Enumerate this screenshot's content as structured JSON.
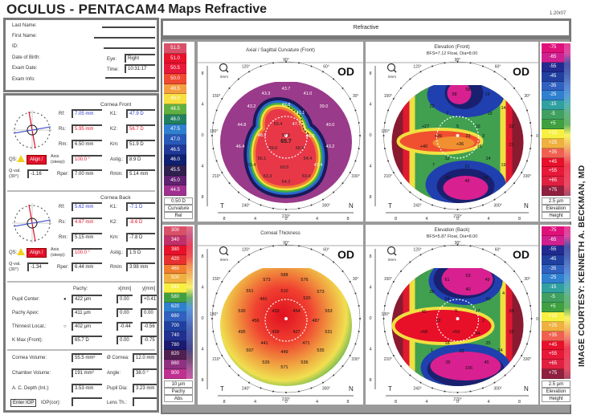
{
  "header": {
    "brand": "OCULUS - PENTACAM",
    "title": "4 Maps Refractive",
    "version": "1.20r07",
    "section": "Refractive"
  },
  "patient": {
    "fields": [
      {
        "label": "Last Name:",
        "value": ""
      },
      {
        "label": "First Name:",
        "value": ""
      },
      {
        "label": "ID:",
        "value": ""
      },
      {
        "label": "Date of Birth:",
        "value": ""
      },
      {
        "label": "Exam Date:",
        "value": ""
      },
      {
        "label": "Exam Info:",
        "value": ""
      }
    ],
    "eye_label": "Eye:",
    "eye": "Right",
    "time_label": "Time:",
    "time": "10:31:17"
  },
  "cornea_front": {
    "title": "Cornea Front",
    "rows": [
      [
        {
          "label": "Rf:",
          "value": "7.05 mm",
          "color": "#2a3ad0"
        },
        {
          "label": "K1:",
          "value": "47.9 D",
          "color": "#2a3ad0"
        }
      ],
      [
        {
          "label": "Rs:",
          "value": "5.95 mm",
          "color": "#e0102a"
        },
        {
          "label": "K2:",
          "value": "56.7 D",
          "color": "#e0102a"
        }
      ],
      [
        {
          "label": "Rm:",
          "value": "6.50 mm",
          "color": "#222"
        },
        {
          "label": "Km:",
          "value": "51.9 D",
          "color": "#222"
        }
      ],
      [
        {
          "label": "Axis (steep):",
          "value": "100.0 °",
          "color": "#e0102a"
        },
        {
          "label": "Astig.:",
          "value": "8.9 D",
          "color": "#222"
        }
      ],
      [
        {
          "label": "Rper:",
          "value": "7.00 mm",
          "color": "#222"
        },
        {
          "label": "Rmin:",
          "value": "5.14 mm",
          "color": "#222"
        }
      ]
    ],
    "qs_label": "QS:",
    "qs_badge": "Align.!",
    "qval_label": "Q-val. (30°)",
    "qval": "-1.16"
  },
  "cornea_back": {
    "title": "Cornea Back",
    "rows": [
      [
        {
          "label": "Rf:",
          "value": "5.62 mm",
          "color": "#2a3ad0"
        },
        {
          "label": "K1:",
          "value": "-7.1 D",
          "color": "#2a3ad0"
        }
      ],
      [
        {
          "label": "Rs:",
          "value": "4.67 mm",
          "color": "#e0102a"
        },
        {
          "label": "K2:",
          "value": "-8.6 D",
          "color": "#e0102a"
        }
      ],
      [
        {
          "label": "Rm:",
          "value": "5.15 mm",
          "color": "#222"
        },
        {
          "label": "Km:",
          "value": "-7.8 D",
          "color": "#222"
        }
      ],
      [
        {
          "label": "Axis (steep):",
          "value": "100.0 °",
          "color": "#e0102a"
        },
        {
          "label": "Astig.:",
          "value": "1.5 D",
          "color": "#222"
        }
      ],
      [
        {
          "label": "Rper:",
          "value": "6.44 mm",
          "color": "#222"
        },
        {
          "label": "Rmin:",
          "value": "3.98 mm",
          "color": "#222"
        }
      ]
    ],
    "qs_label": "QS:",
    "qs_badge": "Align.!",
    "qval_label": "Q-val. (30°)",
    "qval": "-1.34"
  },
  "pachy_table": {
    "headers": [
      "Pachy:",
      "x[mm]",
      "y[mm]"
    ],
    "rows": [
      {
        "label": "Pupil Center:",
        "marker": "●",
        "pachy": "422 µm",
        "x": "0.00",
        "y": "+0.41"
      },
      {
        "label": "Pachy Apex:",
        "marker": "",
        "pachy": "411 µm",
        "x": "0.00",
        "y": "0.00"
      },
      {
        "label": "Thinnest Locat.:",
        "marker": "○",
        "pachy": "402 µm",
        "x": "-0.44",
        "y": "-0.56"
      },
      {
        "label": "K Max (Front):",
        "marker": "",
        "pachy": "65.7 D",
        "x": "0.00",
        "y": "-0.75"
      }
    ]
  },
  "volumes": {
    "rows": [
      {
        "label": "Cornea Volume:",
        "value": "55.5 mm³",
        "label2": "Ø Cornea:",
        "value2": "12.0 mm"
      },
      {
        "label": "Chamber Volume:",
        "value": "191 mm³",
        "label2": "Angle:",
        "value2": "38.0 °"
      },
      {
        "label": "A. C. Depth (Int.):",
        "value": "3.53 mm",
        "label2": "Pupil Dia:",
        "value2": "3.23 mm"
      }
    ],
    "enter_iop": "Enter IOP",
    "iop_label": "IOP(cor):",
    "iop": "",
    "lens_label": "Lens Th.:",
    "lens": ""
  },
  "map_common": {
    "degree_labels": [
      "90°",
      "60°",
      "30°",
      "0°",
      "330°",
      "300°",
      "270°",
      "240°",
      "210°",
      "180°",
      "150°",
      "120°"
    ],
    "axis_ticks": [
      "8",
      "4",
      "0",
      "4",
      "8"
    ],
    "left": "T",
    "right": "N",
    "zoom_label": "5mm"
  },
  "maps": [
    {
      "kind": "axial",
      "title": "Axial / Sagittal Curvature (Front)",
      "subtitle": "",
      "eye": "OD",
      "values": [
        "43.7",
        "41.0",
        "43.3",
        "43.2",
        "42.8",
        "41.1",
        "39.0",
        "44.8",
        "55.4",
        "47.7",
        "40.0",
        "48.2",
        "57.1",
        "44.0",
        "46.4",
        "59.0",
        "65.7",
        "58.9",
        "43.2",
        "56.1",
        "54.4",
        "59.4",
        "60.5",
        "47.4",
        "53.3",
        "53.4",
        "54.2"
      ]
    },
    {
      "kind": "elevf",
      "title": "Elevation (Front)",
      "subtitle": "BFS=7.12 Float, Dia=8.00",
      "eye": "OD",
      "values": [
        "58",
        "58",
        "19",
        "22",
        "14",
        "7",
        "19",
        "+27",
        "5",
        "10",
        "32",
        "+26",
        "23",
        "3",
        "+40",
        "+36",
        "16",
        "21",
        "12",
        "14",
        "7",
        "21",
        "19",
        "41",
        "56",
        "46"
      ]
    },
    {
      "kind": "pachy",
      "title": "Corneal Thickness",
      "subtitle": "",
      "eye": "OD",
      "values": [
        "588",
        "573",
        "576",
        "551",
        "510",
        "520",
        "573",
        "491",
        "530",
        "433",
        "454",
        "553",
        "456",
        "487",
        "495",
        "439",
        "427",
        "531",
        "441",
        "471",
        "507",
        "449",
        "535",
        "526",
        "536",
        "571"
      ]
    },
    {
      "kind": "elevb",
      "title": "Elevation (Back)",
      "subtitle": "BFS=5.87 Float, Dia=8.00",
      "eye": "OD",
      "values": [
        "61",
        "53",
        "49",
        "26",
        "4",
        "54",
        "40",
        "50",
        "45",
        "9",
        "17",
        "33",
        "22",
        "2",
        "+68",
        "+59",
        "34",
        "32",
        "18",
        "25",
        "1",
        "33",
        "24",
        "36",
        "45",
        "106"
      ]
    }
  ],
  "scales": [
    {
      "name": "curvature",
      "values": [
        "51.5",
        "51.0",
        "50.5",
        "50.0",
        "49.5",
        "49.0",
        "48.5",
        "48.0",
        "47.5",
        "47.0",
        "46.5",
        "46.0",
        "45.5",
        "45.0",
        "44.5"
      ],
      "colors": [
        "#d95068",
        "#e8102a",
        "#e81838",
        "#f04a30",
        "#f5a040",
        "#f8e040",
        "#60b040",
        "#208060",
        "#3080d0",
        "#2858b8",
        "#203898",
        "#102070",
        "#302050",
        "#602070",
        "#a03090"
      ],
      "footer": [
        "0.50 D",
        "Curvature",
        "Rel"
      ]
    },
    {
      "name": "elevation-front",
      "values": [
        "-75",
        "-65",
        "-55",
        "-45",
        "-35",
        "-25",
        "-15",
        "-5",
        "+5",
        "+15",
        "+25",
        "+35",
        "+45",
        "+55",
        "+65",
        "+75"
      ],
      "colors": [
        "#e0107a",
        "#d02090",
        "#202a90",
        "#2040a0",
        "#3060c0",
        "#3080d0",
        "#30a0a0",
        "#40a060",
        "#40a040",
        "#f8f040",
        "#f0b040",
        "#f06050",
        "#e8102a",
        "#e81838",
        "#e02040",
        "#902040"
      ],
      "footer": [
        "2.5 µm",
        "Elevation",
        "Height"
      ]
    },
    {
      "name": "pachymetry",
      "values": [
        "300",
        "340",
        "380",
        "420",
        "460",
        "500",
        "540",
        "580",
        "620",
        "660",
        "700",
        "740",
        "780",
        "820",
        "860",
        "900"
      ],
      "colors": [
        "#d95068",
        "#c0306a",
        "#e8102a",
        "#e83030",
        "#f08030",
        "#f0b040",
        "#f8f040",
        "#40a040",
        "#3080d0",
        "#3060c0",
        "#2040a0",
        "#203090",
        "#1a1a70",
        "#502050",
        "#903080",
        "#c03090"
      ],
      "footer": [
        "10 µm",
        "Pachy",
        "Abs"
      ]
    },
    {
      "name": "elevation-back",
      "values": [
        "-75",
        "-65",
        "-55",
        "-45",
        "-35",
        "-25",
        "-15",
        "-5",
        "+5",
        "+15",
        "+25",
        "+35",
        "+45",
        "+55",
        "+65",
        "+75"
      ],
      "colors": [
        "#e0107a",
        "#d02090",
        "#202a90",
        "#2040a0",
        "#3060c0",
        "#3080d0",
        "#30a0a0",
        "#40a060",
        "#40a040",
        "#f8f040",
        "#f0b040",
        "#f06050",
        "#e8102a",
        "#e81838",
        "#e02040",
        "#902040"
      ],
      "footer": [
        "2.5 µm",
        "Elevation",
        "Height"
      ]
    }
  ],
  "credit": "IMAGE COURTESY: KENNETH A. BECKMAN, MD"
}
